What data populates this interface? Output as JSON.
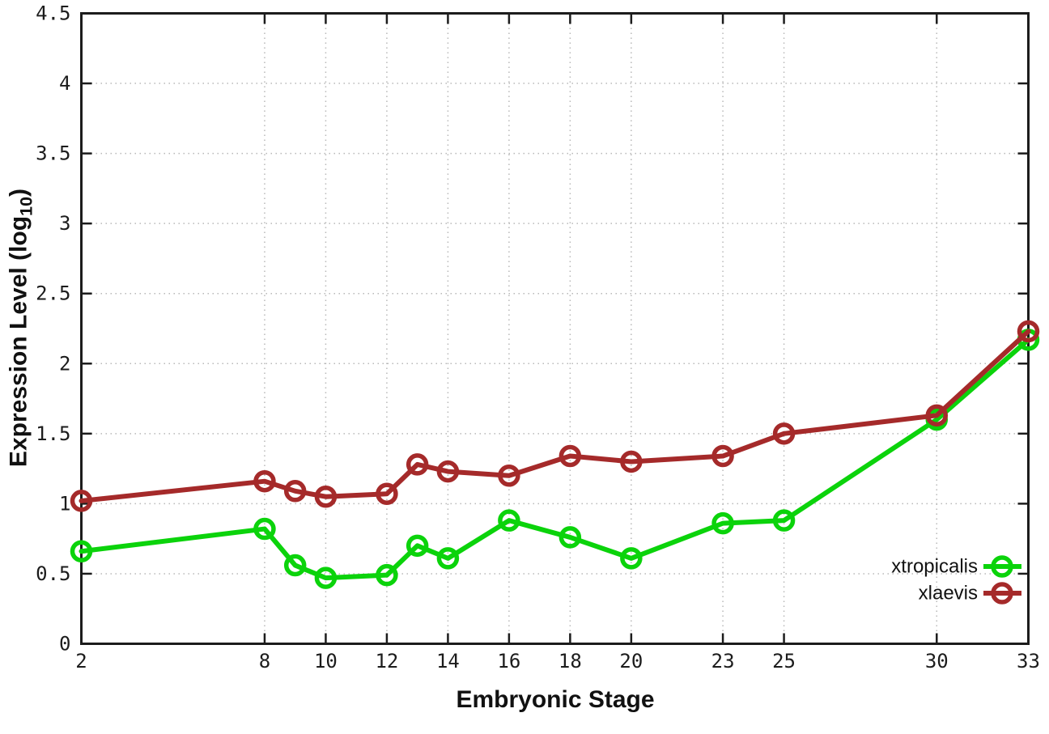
{
  "figure": {
    "xlabel": "Embryonic Stage",
    "ylabel_prefix": "Expression Level (log",
    "ylabel_sub": "10",
    "ylabel_suffix": ")"
  },
  "legend": {
    "items": [
      {
        "label": "xtropicalis",
        "color": "#0bd30b"
      },
      {
        "label": "xlaevis",
        "color": "#a52a2a"
      }
    ]
  },
  "style": {
    "background": "#ffffff",
    "grid_color": "#b8b8b8",
    "axis_color": "#1c1c1c",
    "tick_label_color": "#1c1c1c"
  },
  "chart_data": {
    "type": "line",
    "title": "",
    "xlabel": "Embryonic Stage",
    "ylabel": "Expression Level (log10)",
    "xlim": [
      2,
      33
    ],
    "ylim": [
      0,
      4.5
    ],
    "grid": true,
    "legend_position": "inside bottom-right",
    "x": [
      2,
      8,
      9,
      10,
      12,
      13,
      14,
      16,
      18,
      20,
      23,
      25,
      30,
      33
    ],
    "xticks": [
      2,
      8,
      10,
      12,
      14,
      16,
      18,
      20,
      23,
      25,
      30,
      33
    ],
    "xtick_labels": [
      "2",
      "8",
      "10",
      "12",
      "14",
      "16",
      "18",
      "20",
      "23",
      "25",
      "30",
      "33"
    ],
    "yticks": [
      0,
      0.5,
      1,
      1.5,
      2,
      2.5,
      3,
      3.5,
      4,
      4.5
    ],
    "ytick_labels": [
      "0",
      "0.5",
      "1",
      "1.5",
      "2",
      "2.5",
      "3",
      "3.5",
      "4",
      "4.5"
    ],
    "series": [
      {
        "name": "xtropicalis",
        "color": "#0bd30b",
        "marker": "open-circle",
        "values": [
          0.66,
          0.82,
          0.56,
          0.47,
          0.49,
          0.7,
          0.61,
          0.88,
          0.76,
          0.61,
          0.86,
          0.88,
          1.6,
          2.17
        ]
      },
      {
        "name": "xlaevis",
        "color": "#a52a2a",
        "marker": "open-circle",
        "values": [
          1.02,
          1.16,
          1.09,
          1.05,
          1.07,
          1.28,
          1.23,
          1.2,
          1.34,
          1.3,
          1.34,
          1.5,
          1.63,
          2.23
        ]
      }
    ]
  }
}
